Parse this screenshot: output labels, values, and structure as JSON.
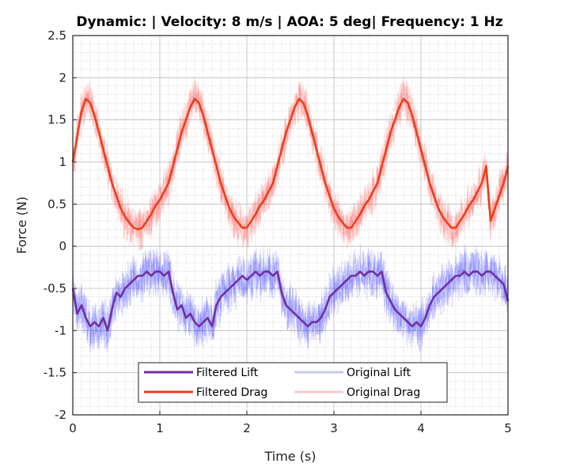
{
  "chart_data": {
    "type": "line",
    "title": "Dynamic: | Velocity: 8 m/s  | AOA: 5 deg| Frequency: 1 Hz",
    "xlabel": "Time (s)",
    "ylabel": "Force (N)",
    "xlim": [
      0,
      5
    ],
    "ylim": [
      -2,
      2.5
    ],
    "x_ticks": [
      0,
      1,
      2,
      3,
      4,
      5
    ],
    "x_tick_labels": [
      "0",
      "1",
      "2",
      "3",
      "4",
      "5"
    ],
    "y_ticks": [
      -2,
      -1.5,
      -1,
      -0.5,
      0,
      0.5,
      1,
      1.5,
      2,
      2.5
    ],
    "y_tick_labels": [
      "-2",
      "-1.5",
      "-1",
      "-0.5",
      "0",
      "0.5",
      "1",
      "1.5",
      "2",
      "2.5"
    ],
    "grid": true,
    "minor_grid": true,
    "legend_position": "bottom-center",
    "series": [
      {
        "name": "Filtered Lift",
        "color": "#7030a0",
        "style": "filtered",
        "x": [
          0,
          0.05,
          0.1,
          0.15,
          0.2,
          0.25,
          0.3,
          0.35,
          0.4,
          0.45,
          0.5,
          0.55,
          0.6,
          0.65,
          0.7,
          0.75,
          0.8,
          0.85,
          0.9,
          0.95,
          1.0,
          1.05,
          1.1,
          1.15,
          1.2,
          1.25,
          1.3,
          1.35,
          1.4,
          1.45,
          1.5,
          1.55,
          1.6,
          1.65,
          1.7,
          1.75,
          1.8,
          1.85,
          1.9,
          1.95,
          2.0,
          2.05,
          2.1,
          2.15,
          2.2,
          2.25,
          2.3,
          2.35,
          2.4,
          2.45,
          2.5,
          2.55,
          2.6,
          2.65,
          2.7,
          2.75,
          2.8,
          2.85,
          2.9,
          2.95,
          3.0,
          3.05,
          3.1,
          3.15,
          3.2,
          3.25,
          3.3,
          3.35,
          3.4,
          3.45,
          3.5,
          3.55,
          3.6,
          3.65,
          3.7,
          3.75,
          3.8,
          3.85,
          3.9,
          3.95,
          4.0,
          4.05,
          4.1,
          4.15,
          4.2,
          4.25,
          4.3,
          4.35,
          4.4,
          4.45,
          4.5,
          4.55,
          4.6,
          4.65,
          4.7,
          4.75,
          4.8,
          4.85,
          4.9,
          4.95,
          5.0
        ],
        "values": [
          -0.5,
          -0.8,
          -0.7,
          -0.85,
          -0.95,
          -0.9,
          -0.95,
          -0.85,
          -1.0,
          -0.75,
          -0.55,
          -0.6,
          -0.5,
          -0.45,
          -0.4,
          -0.35,
          -0.35,
          -0.3,
          -0.35,
          -0.3,
          -0.3,
          -0.35,
          -0.3,
          -0.55,
          -0.75,
          -0.7,
          -0.85,
          -0.8,
          -0.9,
          -0.95,
          -0.9,
          -0.85,
          -0.95,
          -0.7,
          -0.6,
          -0.55,
          -0.5,
          -0.45,
          -0.4,
          -0.35,
          -0.4,
          -0.35,
          -0.3,
          -0.35,
          -0.3,
          -0.3,
          -0.35,
          -0.3,
          -0.55,
          -0.7,
          -0.75,
          -0.8,
          -0.85,
          -0.9,
          -0.95,
          -0.9,
          -0.9,
          -0.85,
          -0.75,
          -0.6,
          -0.55,
          -0.5,
          -0.45,
          -0.4,
          -0.35,
          -0.35,
          -0.3,
          -0.35,
          -0.3,
          -0.3,
          -0.35,
          -0.3,
          -0.55,
          -0.65,
          -0.75,
          -0.8,
          -0.85,
          -0.9,
          -0.95,
          -0.9,
          -0.95,
          -0.85,
          -0.7,
          -0.6,
          -0.55,
          -0.5,
          -0.45,
          -0.4,
          -0.35,
          -0.35,
          -0.3,
          -0.35,
          -0.3,
          -0.3,
          -0.35,
          -0.3,
          -0.3,
          -0.35,
          -0.4,
          -0.45,
          -0.65
        ]
      },
      {
        "name": "Filtered Drag",
        "color": "#e8401c",
        "style": "filtered",
        "x": [
          0,
          0.05,
          0.1,
          0.15,
          0.2,
          0.25,
          0.3,
          0.35,
          0.4,
          0.45,
          0.5,
          0.55,
          0.6,
          0.65,
          0.7,
          0.75,
          0.8,
          0.85,
          0.9,
          0.95,
          1.0,
          1.05,
          1.1,
          1.15,
          1.2,
          1.25,
          1.3,
          1.35,
          1.4,
          1.45,
          1.5,
          1.55,
          1.6,
          1.65,
          1.7,
          1.75,
          1.8,
          1.85,
          1.9,
          1.95,
          2.0,
          2.05,
          2.1,
          2.15,
          2.2,
          2.25,
          2.3,
          2.35,
          2.4,
          2.45,
          2.5,
          2.55,
          2.6,
          2.65,
          2.7,
          2.75,
          2.8,
          2.85,
          2.9,
          2.95,
          3.0,
          3.05,
          3.1,
          3.15,
          3.2,
          3.25,
          3.3,
          3.35,
          3.4,
          3.45,
          3.5,
          3.55,
          3.6,
          3.65,
          3.7,
          3.75,
          3.8,
          3.85,
          3.9,
          3.95,
          4.0,
          4.05,
          4.1,
          4.15,
          4.2,
          4.25,
          4.3,
          4.35,
          4.4,
          4.45,
          4.5,
          4.55,
          4.6,
          4.65,
          4.7,
          4.75,
          4.8,
          4.85,
          4.9,
          4.95,
          5.0
        ],
        "values": [
          1.0,
          1.3,
          1.6,
          1.75,
          1.7,
          1.55,
          1.35,
          1.15,
          0.95,
          0.75,
          0.6,
          0.45,
          0.35,
          0.28,
          0.22,
          0.2,
          0.22,
          0.3,
          0.38,
          0.48,
          0.55,
          0.65,
          0.75,
          0.95,
          1.15,
          1.35,
          1.5,
          1.65,
          1.75,
          1.7,
          1.55,
          1.35,
          1.15,
          0.95,
          0.75,
          0.6,
          0.45,
          0.35,
          0.28,
          0.22,
          0.22,
          0.3,
          0.38,
          0.48,
          0.55,
          0.65,
          0.75,
          0.95,
          1.15,
          1.35,
          1.5,
          1.65,
          1.75,
          1.7,
          1.55,
          1.35,
          1.15,
          0.95,
          0.75,
          0.6,
          0.45,
          0.35,
          0.28,
          0.22,
          0.22,
          0.3,
          0.38,
          0.48,
          0.55,
          0.65,
          0.75,
          0.95,
          1.15,
          1.35,
          1.5,
          1.65,
          1.75,
          1.7,
          1.55,
          1.35,
          1.15,
          0.95,
          0.75,
          0.6,
          0.45,
          0.35,
          0.28,
          0.22,
          0.22,
          0.3,
          0.38,
          0.48,
          0.55,
          0.65,
          0.75,
          0.95,
          0.3,
          0.45,
          0.6,
          0.75,
          0.95
        ]
      },
      {
        "name": "Original Lift",
        "color": "#2b2bff",
        "style": "original",
        "noise_amplitude": 0.35
      },
      {
        "name": "Original Drag",
        "color": "#ff3b3b",
        "style": "original",
        "noise_amplitude": 0.3
      }
    ]
  },
  "legend": {
    "entries": [
      {
        "name": "Filtered Lift",
        "color": "#7030a0",
        "style": "filtered"
      },
      {
        "name": "Original Lift",
        "color": "#c9c9f0",
        "style": "original"
      },
      {
        "name": "Filtered Drag",
        "color": "#e8401c",
        "style": "filtered"
      },
      {
        "name": "Original Drag",
        "color": "#f8c9c9",
        "style": "original"
      }
    ]
  },
  "colors": {
    "axis": "#222222",
    "grid": "#bbbbbb"
  }
}
